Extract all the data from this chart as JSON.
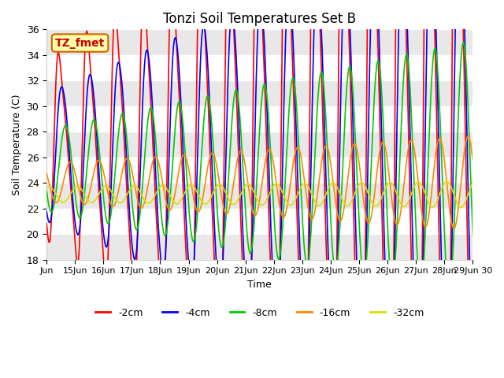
{
  "title": "Tonzi Soil Temperatures Set B",
  "xlabel": "Time",
  "ylabel": "Soil Temperature (C)",
  "ylim": [
    18,
    36
  ],
  "xlim": [
    0,
    360
  ],
  "annotation_text": "TZ_fmet",
  "bg_color": "#ffffff",
  "fig_color": "#ffffff",
  "band_color": "#e8e8e8",
  "series": [
    {
      "label": "-2cm",
      "color": "#ff0000",
      "amplitude": 7.0,
      "mean": 26.5,
      "phase": 6.0,
      "period": 24.0,
      "skew": 0.3,
      "trend": 0.01
    },
    {
      "label": "-4cm",
      "color": "#0000ff",
      "amplitude": 5.0,
      "mean": 26.0,
      "phase": 7.5,
      "period": 24.0,
      "skew": 0.1,
      "trend": 0.008
    },
    {
      "label": "-8cm",
      "color": "#00cc00",
      "amplitude": 3.2,
      "mean": 25.0,
      "phase": 10.0,
      "period": 24.0,
      "skew": 0.0,
      "trend": 0.006
    },
    {
      "label": "-16cm",
      "color": "#ff8800",
      "amplitude": 1.5,
      "mean": 24.0,
      "phase": 14.0,
      "period": 24.0,
      "skew": 0.0,
      "trend": 0.004
    },
    {
      "label": "-32cm",
      "color": "#dddd00",
      "amplitude": 0.6,
      "mean": 23.1,
      "phase": 20.0,
      "period": 24.0,
      "skew": 0.0,
      "trend": 0.002
    }
  ],
  "xtick_positions": [
    0,
    24,
    48,
    72,
    96,
    120,
    144,
    168,
    192,
    216,
    240,
    264,
    288,
    312,
    336,
    360
  ],
  "xtick_labels": [
    "Jun",
    "15Jun",
    "16Jun",
    "17Jun",
    "18Jun",
    "19Jun",
    "20Jun",
    "21Jun",
    "22Jun",
    "23Jun",
    "24Jun",
    "25Jun",
    "26Jun",
    "27Jun",
    "28Jun",
    "29Jun 30"
  ],
  "yticks": [
    18,
    20,
    22,
    24,
    26,
    28,
    30,
    32,
    34,
    36
  ]
}
